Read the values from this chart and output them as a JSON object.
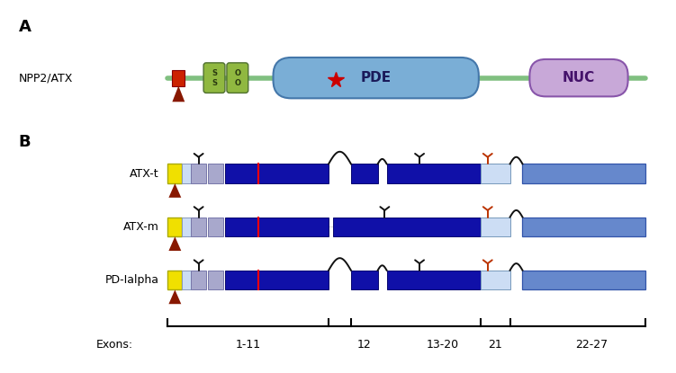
{
  "fig_width": 7.51,
  "fig_height": 4.15,
  "dpi": 100,
  "bg_color": "#ffffff",
  "panel_a_label": "A",
  "panel_b_label": "B",
  "npp2_label": "NPP2/ATX",
  "pde_label": "PDE",
  "nuc_label": "NUC",
  "isoform_labels": [
    "ATX-t",
    "ATX-m",
    "PD-Ialpha"
  ],
  "exons_label": "Exons:",
  "colors": {
    "green_line": "#80c080",
    "pde_box": "#7aaed6",
    "nuc_box": "#c8a8d8",
    "smc_box": "#90b840",
    "red_box": "#cc2200",
    "dark_blue": "#1010a8",
    "mid_blue": "#6688cc",
    "light_blue": "#aac4e8",
    "very_light_blue": "#ccddf4",
    "lavender": "#a8a8cc",
    "yellow": "#f0e000",
    "red_arrow": "#881800",
    "red_star": "#cc0000",
    "orange_y": "#bb3300",
    "black_y": "#111111"
  }
}
